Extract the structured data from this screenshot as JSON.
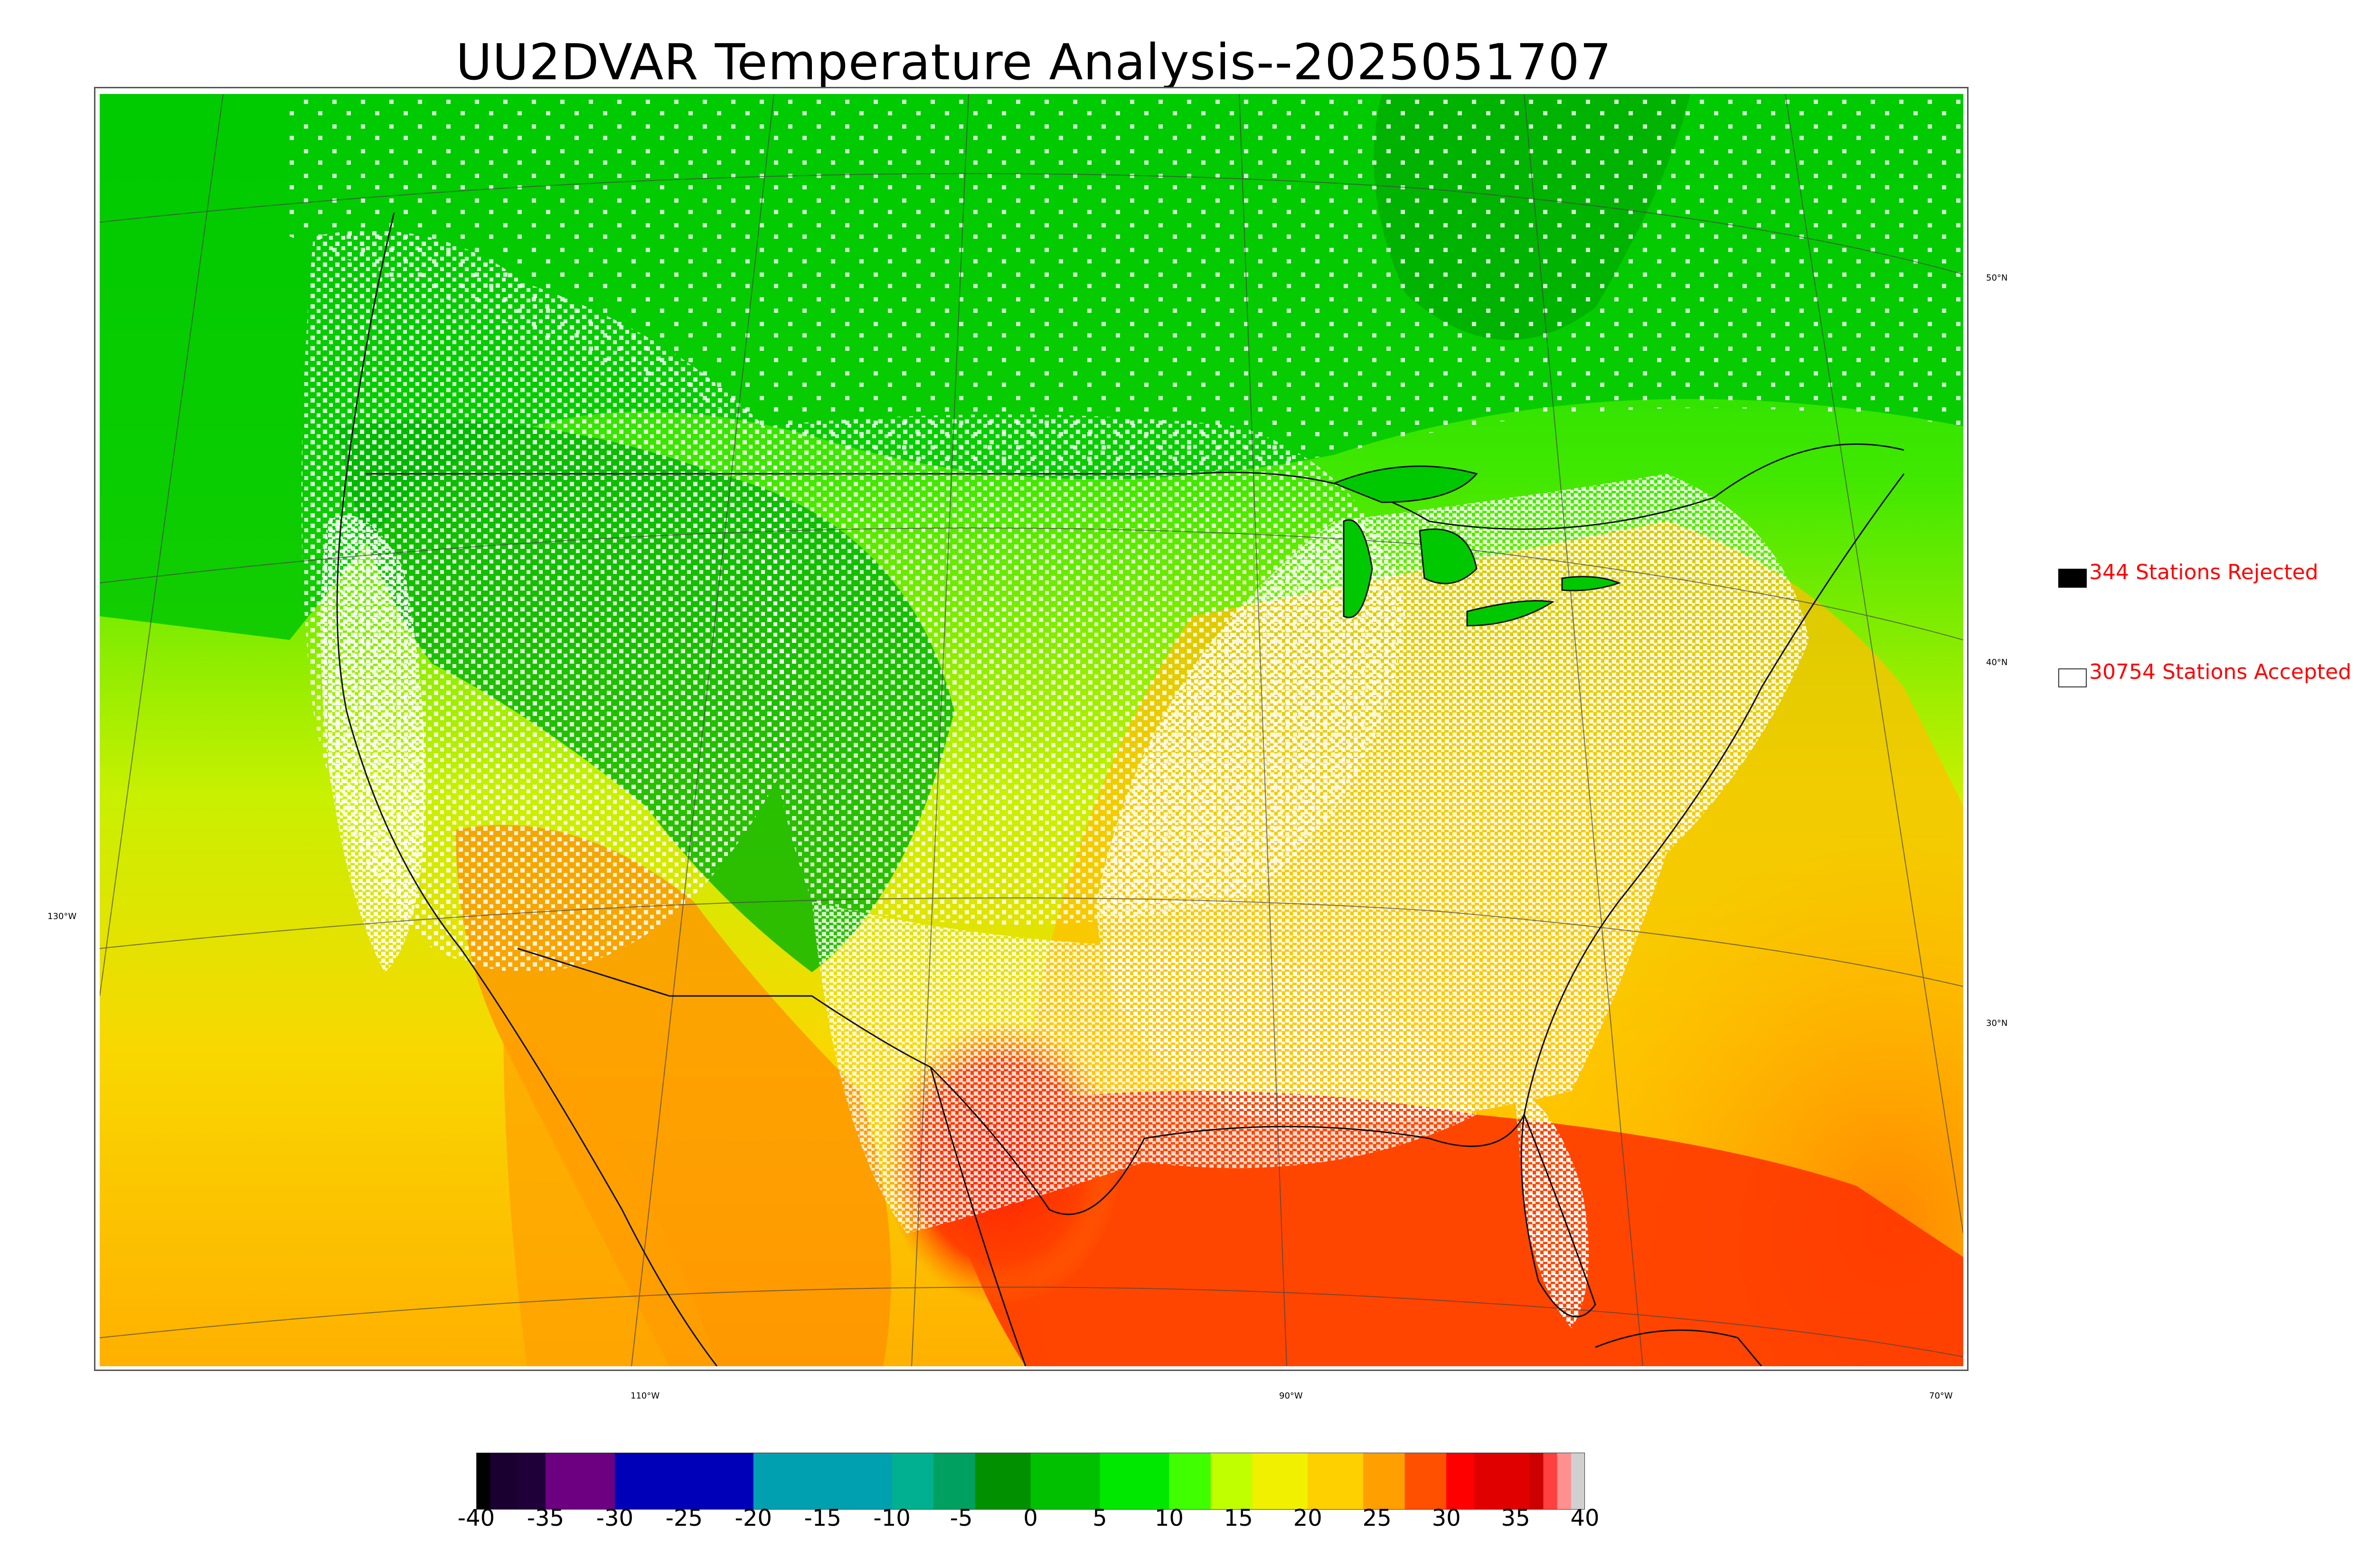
{
  "title": "UU2DVAR Temperature Analysis--2025051707",
  "map": {
    "latitude_labels": [
      "50°N",
      "40°N",
      "30°N"
    ],
    "longitude_labels": [
      "130°W",
      "110°W",
      "90°W",
      "70°W"
    ]
  },
  "legend": {
    "rejected": {
      "count_label": "344 Stations Rejected",
      "swatch_color": "#000000"
    },
    "accepted": {
      "count_label": "30754 Stations Accepted",
      "swatch_color": "#ffffff"
    },
    "text_color": "#ff0000"
  },
  "colorbar": {
    "units_range": [
      -40,
      40
    ],
    "tick_labels": [
      "-40",
      "-35",
      "-30",
      "-25",
      "-20",
      "-15",
      "-10",
      "-5",
      "0",
      "5",
      "10",
      "15",
      "20",
      "25",
      "30",
      "35",
      "40"
    ],
    "color_stops": [
      {
        "value": -40,
        "color": "#000000"
      },
      {
        "value": -39,
        "color": "#1a0030"
      },
      {
        "value": -37,
        "color": "#200038"
      },
      {
        "value": -35,
        "color": "#6c0080"
      },
      {
        "value": -30,
        "color": "#0000b8"
      },
      {
        "value": -20,
        "color": "#00a0b0"
      },
      {
        "value": -10,
        "color": "#00b090"
      },
      {
        "value": -7,
        "color": "#00a060"
      },
      {
        "value": -4,
        "color": "#009000"
      },
      {
        "value": 0,
        "color": "#00c000"
      },
      {
        "value": 5,
        "color": "#00e800"
      },
      {
        "value": 10,
        "color": "#40ff00"
      },
      {
        "value": 13,
        "color": "#c0ff00"
      },
      {
        "value": 16,
        "color": "#f0f000"
      },
      {
        "value": 20,
        "color": "#ffd000"
      },
      {
        "value": 24,
        "color": "#ffa000"
      },
      {
        "value": 27,
        "color": "#ff5000"
      },
      {
        "value": 30,
        "color": "#ff0000"
      },
      {
        "value": 32,
        "color": "#e00000"
      },
      {
        "value": 36,
        "color": "#cc0000"
      },
      {
        "value": 37,
        "color": "#ff4040"
      },
      {
        "value": 38,
        "color": "#ff9090"
      },
      {
        "value": 39,
        "color": "#d0d0d0"
      }
    ]
  }
}
